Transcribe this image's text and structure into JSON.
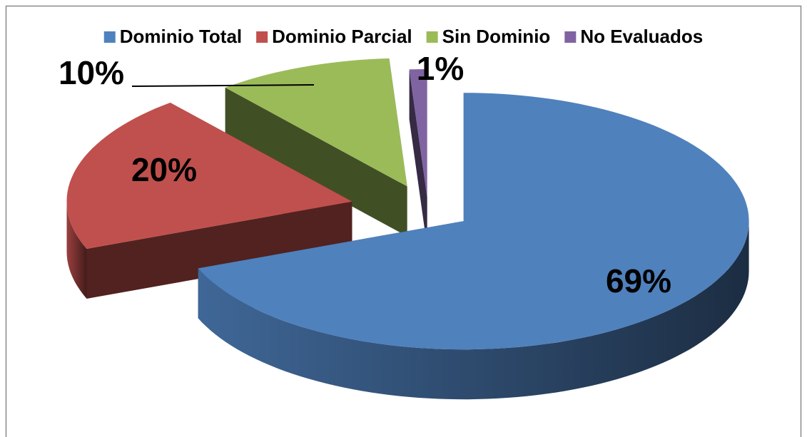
{
  "chart_data": {
    "type": "pie",
    "categories": [
      "Dominio Total",
      "Dominio Parcial",
      "Sin Dominio",
      "No Evaluados"
    ],
    "values": [
      69,
      20,
      10,
      1
    ],
    "value_labels": [
      "69%",
      "20%",
      "10%",
      "1%"
    ],
    "colors": [
      "#4f81bd",
      "#c0504d",
      "#9bbb59",
      "#8064a2"
    ],
    "legend": "top"
  }
}
